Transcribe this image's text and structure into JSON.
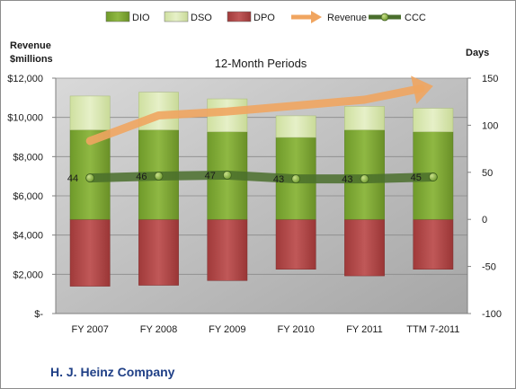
{
  "colors": {
    "dio": "#7da532",
    "dso": "#d8e6b0",
    "dpo": "#b34a4a",
    "revenue": "#f0a560",
    "ccc": "#4a6e2c",
    "plot_bg": "#bfbfbf"
  },
  "chart_data": {
    "type": "bar",
    "title": "",
    "subtitle": "12-Month Periods",
    "company": "H. J. Heinz Company",
    "categories": [
      "FY 2007",
      "FY 2008",
      "FY 2009",
      "FY 2010",
      "FY 2011",
      "TTM 7-2011"
    ],
    "left_axis": {
      "label_line1": "Revenue",
      "label_line2": "$millions",
      "range": [
        0,
        12000
      ],
      "ticks": [
        0,
        2000,
        4000,
        6000,
        8000,
        10000,
        12000
      ],
      "tick_labels": [
        "$-",
        "$2,000",
        "$4,000",
        "$6,000",
        "$8,000",
        "$10,000",
        "$12,000"
      ]
    },
    "right_axis": {
      "label": "Days",
      "range": [
        -100,
        150
      ],
      "ticks": [
        -100,
        -50,
        0,
        50,
        100,
        150
      ],
      "tick_labels": [
        "-100",
        "-50",
        "0",
        "50",
        "100",
        "150"
      ]
    },
    "legend": [
      "DIO",
      "DSO",
      "DPO",
      "Revenue",
      "CCC"
    ],
    "legend_position": "top",
    "series": [
      {
        "name": "DIO",
        "axis": "right",
        "values": [
          95,
          95,
          93,
          87,
          95,
          93
        ]
      },
      {
        "name": "DSO",
        "axis": "right",
        "values": [
          36,
          40,
          35,
          23,
          25,
          25
        ]
      },
      {
        "name": "DPO",
        "axis": "right",
        "values": [
          -71,
          -70,
          -65,
          -53,
          -60,
          -53
        ]
      },
      {
        "name": "Revenue",
        "axis": "left",
        "values": [
          8800,
          10100,
          10300,
          10600,
          10900,
          11600
        ]
      },
      {
        "name": "CCC",
        "axis": "right",
        "values": [
          44,
          46,
          47,
          43,
          43,
          45
        ],
        "labels": [
          "44",
          "46",
          "47",
          "43",
          "43",
          "45"
        ]
      }
    ]
  }
}
